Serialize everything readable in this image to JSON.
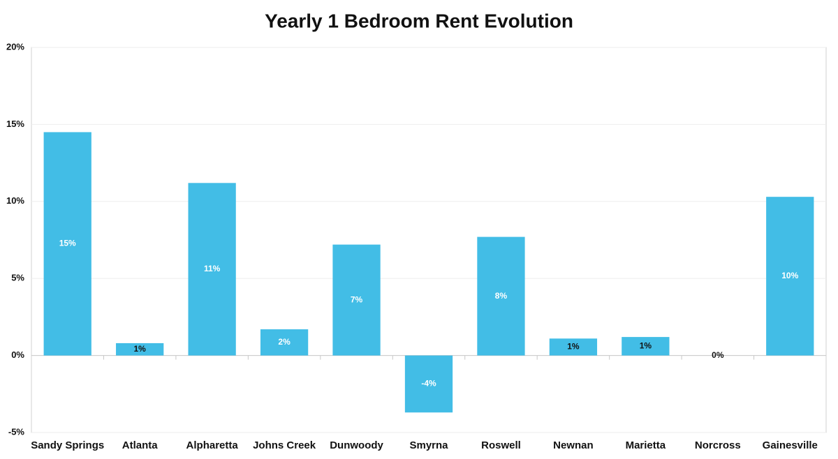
{
  "chart_data": {
    "type": "bar",
    "title": "Yearly 1 Bedroom Rent Evolution",
    "categories": [
      "Sandy Springs",
      "Atlanta",
      "Alpharetta",
      "Johns Creek",
      "Dunwoody",
      "Smyrna",
      "Roswell",
      "Newnan",
      "Marietta",
      "Norcross",
      "Gainesville"
    ],
    "values": [
      14.5,
      0.8,
      11.2,
      1.7,
      7.2,
      -3.7,
      7.7,
      1.1,
      1.2,
      0,
      10.3
    ],
    "value_labels": [
      "15%",
      "1%",
      "11%",
      "2%",
      "7%",
      "-4%",
      "8%",
      "1%",
      "1%",
      "0%",
      "10%"
    ],
    "color": "#42bde6",
    "ylim": [
      -5,
      20
    ],
    "yticks": [
      {
        "value": -5,
        "label": "-5%"
      },
      {
        "value": 0,
        "label": "0%"
      },
      {
        "value": 5,
        "label": "5%"
      },
      {
        "value": 10,
        "label": "10%"
      },
      {
        "value": 15,
        "label": "15%"
      },
      {
        "value": 20,
        "label": "20%"
      }
    ],
    "grid": true
  }
}
